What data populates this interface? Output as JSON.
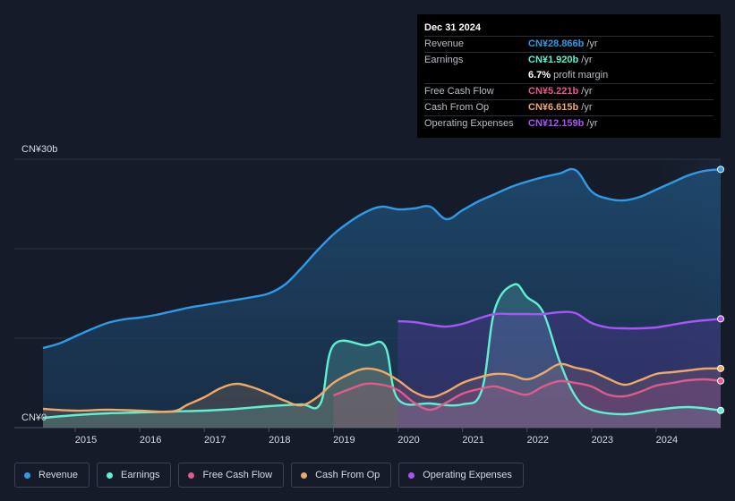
{
  "tooltip": {
    "date": "Dec 31 2024",
    "rows": [
      {
        "label": "Revenue",
        "value": "CN¥28.866b",
        "unit": "/yr",
        "color": "#2f9be8"
      },
      {
        "label": "Earnings",
        "value": "CN¥1.920b",
        "unit": "/yr",
        "color": "#5ff0d2"
      },
      {
        "label": "",
        "value": "6.7%",
        "unit": "profit margin",
        "color": "#ffffff"
      },
      {
        "label": "Free Cash Flow",
        "value": "CN¥5.221b",
        "unit": "/yr",
        "color": "#e05a8c"
      },
      {
        "label": "Cash From Op",
        "value": "CN¥6.615b",
        "unit": "/yr",
        "color": "#f0a868"
      },
      {
        "label": "Operating Expenses",
        "value": "CN¥12.159b",
        "unit": "/yr",
        "color": "#a855f7"
      }
    ]
  },
  "legend": [
    {
      "label": "Revenue",
      "color": "#2f9be8"
    },
    {
      "label": "Earnings",
      "color": "#5ff0d2"
    },
    {
      "label": "Free Cash Flow",
      "color": "#e05a8c"
    },
    {
      "label": "Cash From Op",
      "color": "#f0a868"
    },
    {
      "label": "Operating Expenses",
      "color": "#a855f7"
    }
  ],
  "chart_data": {
    "type": "area",
    "title": "",
    "unit": "CN¥ billions",
    "y_axis_labels": [
      "CN¥30b",
      "CN¥0"
    ],
    "ylim": [
      0,
      30
    ],
    "xlim": [
      2014.5,
      2025.0
    ],
    "x_ticks": [
      "2015",
      "2016",
      "2017",
      "2018",
      "2019",
      "2020",
      "2021",
      "2022",
      "2023",
      "2024"
    ],
    "forecast_start": 2024.0,
    "series": [
      {
        "name": "Revenue",
        "color": "#2f9be8",
        "x": [
          2014.5,
          2014.75,
          2015.0,
          2015.25,
          2015.5,
          2015.75,
          2016.0,
          2016.25,
          2016.5,
          2016.75,
          2017.0,
          2017.25,
          2017.5,
          2017.75,
          2018.0,
          2018.25,
          2018.5,
          2018.75,
          2019.0,
          2019.25,
          2019.5,
          2019.75,
          2020.0,
          2020.25,
          2020.5,
          2020.75,
          2021.0,
          2021.25,
          2021.5,
          2021.75,
          2022.0,
          2022.25,
          2022.5,
          2022.75,
          2023.0,
          2023.25,
          2023.5,
          2023.75,
          2024.0,
          2024.25,
          2024.5,
          2024.75,
          2025.0
        ],
        "values": [
          8.9,
          9.4,
          10.2,
          11.0,
          11.7,
          12.1,
          12.3,
          12.6,
          13.0,
          13.4,
          13.7,
          14.0,
          14.3,
          14.6,
          15.0,
          16.0,
          17.8,
          19.8,
          21.6,
          23.0,
          24.1,
          24.7,
          24.4,
          24.5,
          24.7,
          23.3,
          24.3,
          25.3,
          26.1,
          26.9,
          27.5,
          28.0,
          28.4,
          28.8,
          26.4,
          25.6,
          25.4,
          25.8,
          26.6,
          27.4,
          28.2,
          28.7,
          28.866
        ]
      },
      {
        "name": "Earnings",
        "color": "#5ff0d2",
        "x": [
          2014.5,
          2015.0,
          2015.5,
          2016.0,
          2016.5,
          2017.0,
          2017.5,
          2018.0,
          2018.5,
          2018.8,
          2019.0,
          2019.5,
          2019.8,
          2020.0,
          2020.5,
          2021.0,
          2021.3,
          2021.5,
          2021.8,
          2022.0,
          2022.25,
          2022.5,
          2022.75,
          2023.0,
          2023.5,
          2024.0,
          2024.5,
          2025.0
        ],
        "values": [
          1.1,
          1.4,
          1.6,
          1.7,
          1.8,
          1.9,
          2.1,
          2.4,
          2.6,
          2.7,
          9.2,
          9.2,
          9.1,
          3.2,
          2.7,
          2.6,
          4.2,
          13.2,
          16.0,
          14.6,
          12.9,
          7.5,
          3.5,
          2.0,
          1.5,
          2.0,
          2.3,
          1.92
        ]
      },
      {
        "name": "Free Cash Flow",
        "color": "#e05a8c",
        "x": [
          2019.0,
          2019.25,
          2019.5,
          2019.75,
          2020.0,
          2020.25,
          2020.5,
          2020.75,
          2021.0,
          2021.25,
          2021.5,
          2021.75,
          2022.0,
          2022.25,
          2022.5,
          2022.75,
          2023.0,
          2023.25,
          2023.5,
          2023.75,
          2024.0,
          2024.25,
          2024.5,
          2024.75,
          2025.0
        ],
        "values": [
          3.6,
          4.3,
          4.9,
          4.8,
          4.2,
          2.8,
          2.0,
          2.8,
          3.8,
          4.3,
          4.6,
          4.1,
          3.7,
          4.6,
          5.2,
          5.0,
          4.6,
          3.7,
          3.5,
          4.0,
          4.7,
          5.0,
          5.3,
          5.4,
          5.221
        ]
      },
      {
        "name": "Cash From Op",
        "color": "#f0a868",
        "x": [
          2014.5,
          2015.0,
          2015.5,
          2016.0,
          2016.5,
          2016.75,
          2017.0,
          2017.25,
          2017.5,
          2017.75,
          2018.0,
          2018.25,
          2018.5,
          2018.75,
          2019.0,
          2019.25,
          2019.5,
          2019.75,
          2020.0,
          2020.25,
          2020.5,
          2020.75,
          2021.0,
          2021.25,
          2021.5,
          2021.75,
          2022.0,
          2022.25,
          2022.5,
          2022.75,
          2023.0,
          2023.25,
          2023.5,
          2023.75,
          2024.0,
          2024.25,
          2024.5,
          2024.75,
          2025.0
        ],
        "values": [
          2.1,
          1.9,
          2.0,
          1.9,
          1.8,
          2.6,
          3.4,
          4.4,
          4.9,
          4.5,
          3.8,
          3.0,
          2.5,
          3.4,
          5.0,
          6.0,
          6.6,
          6.3,
          5.3,
          4.0,
          3.4,
          4.0,
          5.0,
          5.6,
          6.0,
          5.9,
          5.4,
          6.1,
          7.1,
          6.7,
          6.3,
          5.5,
          4.8,
          5.3,
          6.0,
          6.2,
          6.4,
          6.6,
          6.615
        ]
      },
      {
        "name": "Operating Expenses",
        "color": "#a855f7",
        "x": [
          2020.0,
          2020.25,
          2020.5,
          2020.75,
          2021.0,
          2021.25,
          2021.5,
          2021.75,
          2022.0,
          2022.25,
          2022.5,
          2022.75,
          2023.0,
          2023.25,
          2023.5,
          2023.75,
          2024.0,
          2024.25,
          2024.5,
          2024.75,
          2025.0
        ],
        "values": [
          11.9,
          11.8,
          11.5,
          11.3,
          11.6,
          12.2,
          12.7,
          12.7,
          12.7,
          12.7,
          12.9,
          12.8,
          11.7,
          11.2,
          11.1,
          11.1,
          11.2,
          11.5,
          11.8,
          12.0,
          12.159
        ]
      }
    ]
  }
}
